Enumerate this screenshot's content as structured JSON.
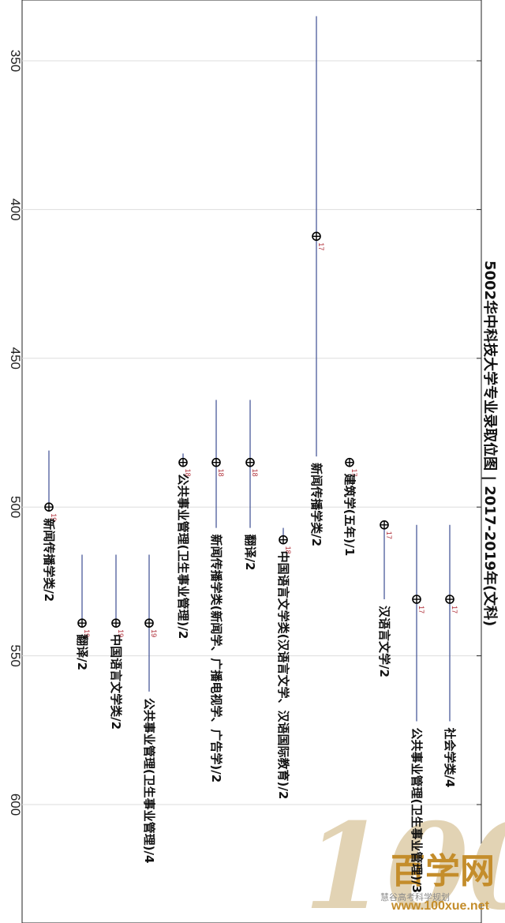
{
  "chart_data": {
    "type": "scatter",
    "title": "5002华中科技大学专业录取位图 | 2017-2019年(文科)",
    "ylim": [
      330,
      640
    ],
    "yticks": [
      350,
      400,
      450,
      500,
      550,
      600
    ],
    "grid": true,
    "colors": {
      "range": "#4a5a9a",
      "marker": "#000000",
      "year": "#b0303a",
      "grid": "#dddddd"
    },
    "points": [
      {
        "label": "新闻传播学类/2",
        "year": "17",
        "value": 409,
        "range": [
          335,
          483
        ]
      },
      {
        "label": "建筑学(五年)/1",
        "year": "17",
        "value": 485,
        "range": null
      },
      {
        "label": "汉语言文学/2",
        "year": "17",
        "value": 506,
        "range": [
          506,
          531
        ]
      },
      {
        "label": "公共事业管理(卫生事业管理)/3",
        "year": "17",
        "value": 531,
        "range": [
          506,
          572
        ]
      },
      {
        "label": "社会学类/4",
        "year": "17",
        "value": 531,
        "range": [
          506,
          572
        ]
      },
      {
        "label": "翻译/2",
        "year": "18",
        "value": 485,
        "range": [
          464,
          507
        ]
      },
      {
        "label": "新闻传播学类(新闻学、广播电视学、广告学)/2",
        "year": "18",
        "value": 485,
        "range": [
          464,
          507
        ]
      },
      {
        "label": "公共事业管理(卫生事业管理)/2",
        "year": "18",
        "value": 485,
        "range": [
          482,
          485
        ]
      },
      {
        "label": "中国语言文学类(汉语言文学、汉语国际教育)/2",
        "year": "18",
        "value": 511,
        "range": [
          507,
          511
        ]
      },
      {
        "label": "新闻传播学类/2",
        "year": "19",
        "value": 500,
        "range": [
          481,
          500
        ]
      },
      {
        "label": "翻译/2",
        "year": "19",
        "value": 539,
        "range": [
          516,
          539
        ]
      },
      {
        "label": "中国语言文学类/2",
        "year": "19",
        "value": 539,
        "range": [
          516,
          539
        ]
      },
      {
        "label": "公共事业管理(卫生事业管理)/4",
        "year": "19",
        "value": 539,
        "range": [
          516,
          562
        ]
      }
    ]
  },
  "watermark": {
    "big": "100",
    "cn": "百学网",
    "url": "www.100xue.net",
    "wechat": "慧谷高考科学规划"
  }
}
